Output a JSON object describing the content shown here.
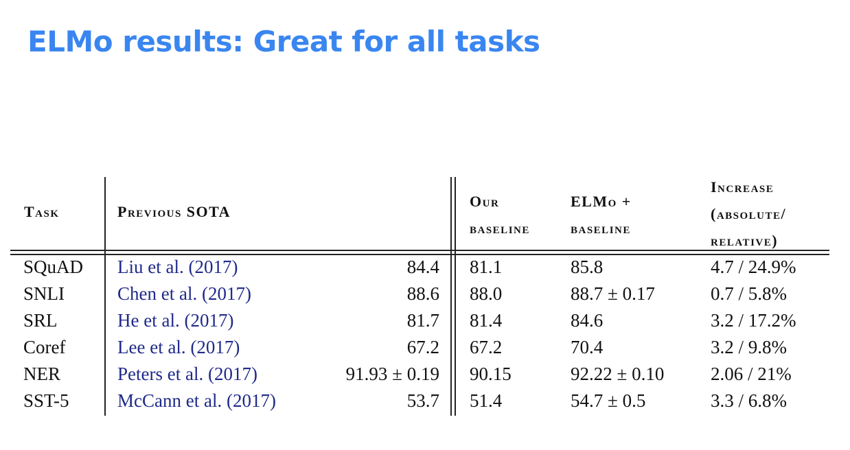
{
  "title": "ELMo results: Great for all tasks",
  "table": {
    "headers": {
      "task": "Task",
      "previous_sota": "Previous SOTA",
      "our_baseline_l1": "Our",
      "our_baseline_l2": "baseline",
      "elmo_baseline_l1": "ELMo +",
      "elmo_baseline_l2": "baseline",
      "increase_l1": "Increase",
      "increase_l2": "(absolute/",
      "increase_l3": "relative)"
    },
    "rows": [
      {
        "task": "SQuAD",
        "citation": "Liu et al. (2017)",
        "sota": "84.4",
        "baseline": "81.1",
        "elmo": "85.8",
        "increase": "4.7 / 24.9%"
      },
      {
        "task": "SNLI",
        "citation": "Chen et al. (2017)",
        "sota": "88.6",
        "baseline": "88.0",
        "elmo": "88.7 ± 0.17",
        "increase": "0.7 / 5.8%"
      },
      {
        "task": "SRL",
        "citation": "He et al. (2017)",
        "sota": "81.7",
        "baseline": "81.4",
        "elmo": "84.6",
        "increase": "3.2 / 17.2%"
      },
      {
        "task": "Coref",
        "citation": "Lee et al. (2017)",
        "sota": "67.2",
        "baseline": "67.2",
        "elmo": "70.4",
        "increase": "3.2 / 9.8%"
      },
      {
        "task": "NER",
        "citation": "Peters et al. (2017)",
        "sota": "91.93 ± 0.19",
        "baseline": "90.15",
        "elmo": "92.22 ± 0.10",
        "increase": "2.06 / 21%"
      },
      {
        "task": "SST-5",
        "citation": "McCann et al. (2017)",
        "sota": "53.7",
        "baseline": "51.4",
        "elmo": "54.7 ± 0.5",
        "increase": "3.3 / 6.8%"
      }
    ]
  }
}
